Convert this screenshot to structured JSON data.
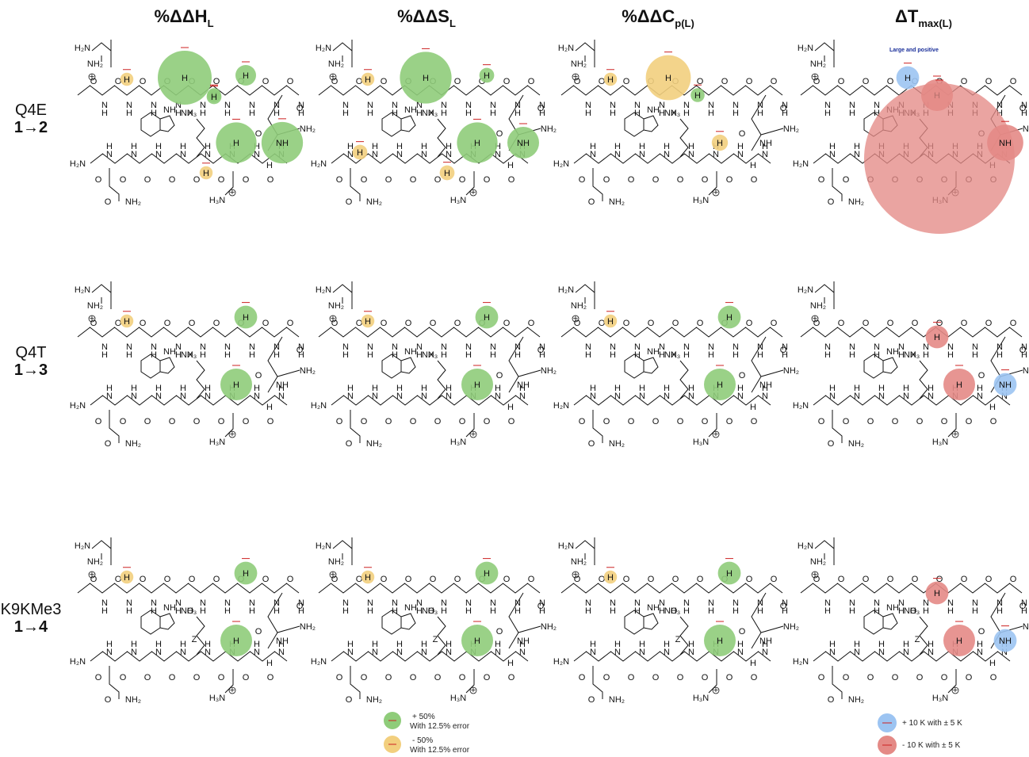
{
  "headers": [
    {
      "main": "%ΔΔH",
      "sub": "L"
    },
    {
      "main": "%ΔΔS",
      "sub": "L"
    },
    {
      "main": "%ΔΔC",
      "sub": "p(L)"
    },
    {
      "main": "ΔT",
      "sub": "max(L)"
    }
  ],
  "rows": [
    {
      "name": "Q4E",
      "transition": "1→2"
    },
    {
      "name": "Q4T",
      "transition": "1→3"
    },
    {
      "name": "K9KMe3",
      "transition": "1→4"
    }
  ],
  "annotations": {
    "large_positive": "Large and positive"
  },
  "atoms": {
    "h2n": "H₂N",
    "nh2": "NH₂",
    "nh": "NH",
    "nh3": "NH₃",
    "h3n": "H₃N",
    "h": "H",
    "n": "N",
    "o": "O",
    "x": "X",
    "z": "Z",
    "plus": "+"
  },
  "legend_left": [
    {
      "value": "+ 50%",
      "note": "With 12.5% error",
      "color": "#8fcc7a"
    },
    {
      "value": "- 50%",
      "note": "With 12.5% error",
      "color": "#f2cf7e"
    }
  ],
  "legend_right": [
    {
      "value": "+ 10 K with ± 5 K",
      "color": "#9cc4f2"
    },
    {
      "value": "- 10 K with ± 5 K",
      "color": "#e48a86"
    }
  ],
  "colors": {
    "green": "#8fcc7a",
    "yellow": "#f2cf7e",
    "blue": "#9cc4f2",
    "red": "#e48a86",
    "errorbar": "#cc2222",
    "mutation": "#cc2222"
  },
  "panel_markers": [
    [
      [
        {
          "type": "circle",
          "res": "w1",
          "color": "green",
          "size": 1.0,
          "label": "H"
        },
        {
          "type": "circle",
          "res": "a1",
          "color": "yellow",
          "size": 0.08,
          "label": "H"
        },
        {
          "type": "circle",
          "res": "s2",
          "color": "green",
          "size": 0.1,
          "label": "H"
        },
        {
          "type": "circle",
          "res": "t2",
          "color": "green",
          "size": 0.25,
          "label": "H"
        },
        {
          "type": "circle",
          "res": "s3",
          "color": "green",
          "size": 0.72,
          "label": "NH"
        },
        {
          "type": "circle",
          "res": "b3",
          "color": "green",
          "size": 0.7,
          "label": "H"
        },
        {
          "type": "circle",
          "res": "b2",
          "color": "yellow",
          "size": 0.08,
          "label": "H"
        },
        {
          "type": "circle",
          "res": "b4",
          "color": "green",
          "size": 0.12,
          "label": "H"
        }
      ],
      [
        {
          "type": "circle",
          "res": "w1",
          "color": "green",
          "size": 0.95,
          "label": "H"
        },
        {
          "type": "circle",
          "res": "a1",
          "color": "yellow",
          "size": 0.08,
          "label": "H"
        },
        {
          "type": "circle",
          "res": "t2",
          "color": "green",
          "size": 0.12,
          "label": "H"
        },
        {
          "type": "circle",
          "res": "s3",
          "color": "green",
          "size": 0.5,
          "label": "NH"
        },
        {
          "type": "circle",
          "res": "b3",
          "color": "green",
          "size": 0.7,
          "label": "H"
        },
        {
          "type": "circle",
          "res": "b2",
          "color": "yellow",
          "size": 0.12,
          "label": "H"
        },
        {
          "type": "circle",
          "res": "b1",
          "color": "yellow",
          "size": 0.12,
          "label": "H"
        }
      ],
      [
        {
          "type": "circle",
          "res": "w1",
          "color": "yellow",
          "size": 0.8,
          "label": "H"
        },
        {
          "type": "circle",
          "res": "a1",
          "color": "yellow",
          "size": 0.08,
          "label": "H"
        },
        {
          "type": "circle",
          "res": "s2",
          "color": "green",
          "size": 0.1,
          "label": "H"
        },
        {
          "type": "circle",
          "res": "b3",
          "color": "yellow",
          "size": 0.15,
          "label": "H"
        }
      ],
      [
        {
          "type": "circle",
          "res": "w1",
          "color": "blue",
          "size": 0.3,
          "label": "H"
        },
        {
          "type": "circle",
          "res": "s2",
          "color": "red",
          "size": 0.5,
          "label": "H"
        },
        {
          "type": "circle",
          "res": "big",
          "color": "red",
          "size": 1.0,
          "label": ""
        },
        {
          "type": "circle",
          "res": "s3",
          "color": "red",
          "size": 0.6,
          "label": "NH"
        }
      ]
    ]
  ]
}
